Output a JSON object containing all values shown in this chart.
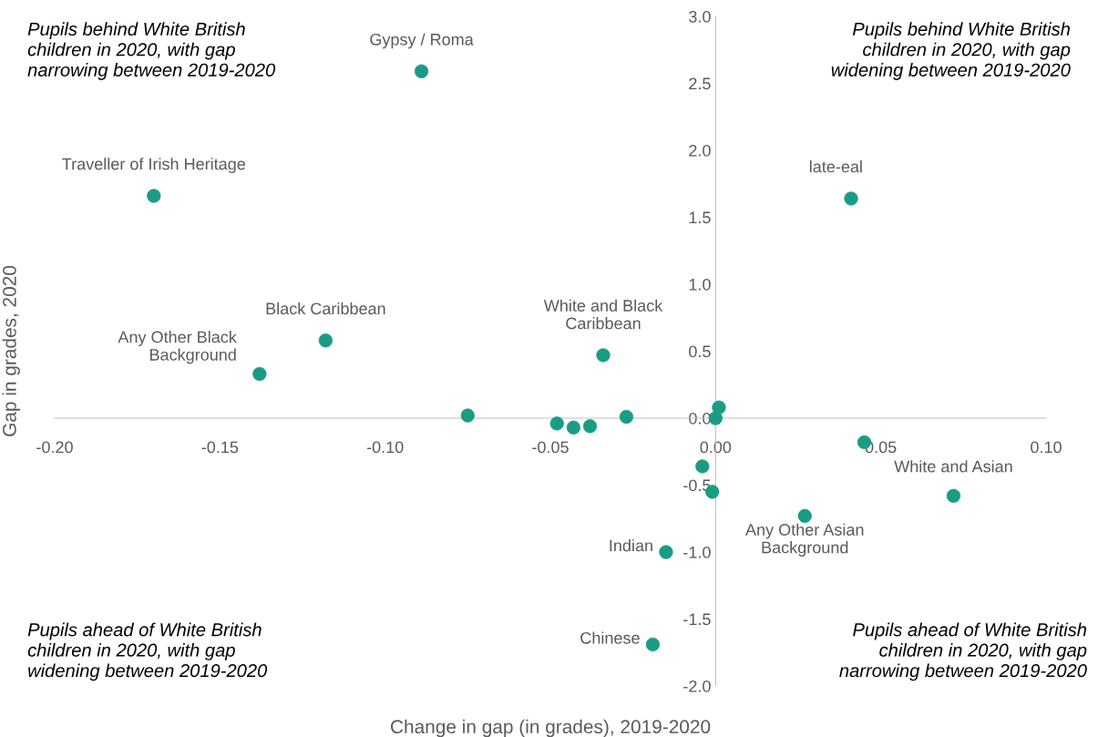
{
  "chart_data": {
    "type": "scatter",
    "xlabel": "Change in gap (in grades), 2019-2020",
    "ylabel": "Gap in grades, 2020",
    "x": [
      -0.089,
      -0.17,
      0.041,
      -0.118,
      -0.138,
      -0.034,
      -0.075,
      -0.048,
      -0.043,
      -0.038,
      -0.027,
      0.001,
      0.0,
      0.045,
      -0.004,
      -0.001,
      0.027,
      0.072,
      -0.015,
      -0.019
    ],
    "series": [
      {
        "color": "#1a9c84",
        "values": [
          2.59,
          1.66,
          1.64,
          0.58,
          0.33,
          0.47,
          0.02,
          -0.04,
          -0.07,
          -0.06,
          0.01,
          0.08,
          0.0,
          -0.18,
          -0.36,
          -0.55,
          -0.73,
          -0.58,
          -1.0,
          -1.69
        ]
      }
    ],
    "xlim": [
      -0.2,
      0.1
    ],
    "ylim": [
      -2.0,
      3.0
    ],
    "xticks": [
      {
        "value": -0.2,
        "label": "-0.20"
      },
      {
        "value": -0.15,
        "label": "-0.15"
      },
      {
        "value": -0.1,
        "label": "-0.10"
      },
      {
        "value": -0.05,
        "label": "-0.05"
      },
      {
        "value": 0.0,
        "label": "0.00"
      },
      {
        "value": 0.05,
        "label": "0.05"
      },
      {
        "value": 0.1,
        "label": "0.10"
      }
    ],
    "yticks": [
      {
        "value": -2.0,
        "label": "-2.0"
      },
      {
        "value": -1.5,
        "label": "-1.5"
      },
      {
        "value": -1.0,
        "label": "-1.0"
      },
      {
        "value": -0.5,
        "label": "-0.5"
      },
      {
        "value": 0.0,
        "label": "0.0"
      },
      {
        "value": 0.5,
        "label": "0.5"
      },
      {
        "value": 1.0,
        "label": "1.0"
      },
      {
        "value": 1.5,
        "label": "1.5"
      },
      {
        "value": 2.0,
        "label": "2.0"
      },
      {
        "value": 2.5,
        "label": "2.5"
      },
      {
        "value": 3.0,
        "label": "3.0"
      }
    ],
    "grid": false,
    "legend": false,
    "marker": "circle",
    "annotations": [
      {
        "text": "Gypsy / Roma",
        "x": -0.089,
        "y": 2.59
      },
      {
        "text": "Traveller of Irish Heritage",
        "x": -0.17,
        "y": 1.66
      },
      {
        "text": "late-eal",
        "x": 0.041,
        "y": 1.64
      },
      {
        "text": "Black Caribbean",
        "x": -0.118,
        "y": 0.58
      },
      {
        "text": "Any Other Black\nBackground",
        "x": -0.138,
        "y": 0.33
      },
      {
        "text": "White and Black\nCaribbean",
        "x": -0.034,
        "y": 0.47
      },
      {
        "text": "Any Other Asian\nBackground",
        "x": 0.027,
        "y": -0.73
      },
      {
        "text": "White and Asian",
        "x": 0.072,
        "y": -0.58
      },
      {
        "text": "Indian",
        "x": -0.015,
        "y": -1.0
      },
      {
        "text": "Chinese",
        "x": -0.019,
        "y": -1.69
      },
      "Pupils behind White British\nchildren in 2020, with gap\nnarrowing between 2019-2020",
      "Pupils behind White British\nchildren in 2020, with gap\nwidening between 2019-2020",
      "Pupils ahead of White British\nchildren in 2020, with gap\nwidening between 2019-2020",
      "Pupils ahead of White British\nchildren in 2020, with gap\nnarrowing between 2019-2020"
    ]
  }
}
